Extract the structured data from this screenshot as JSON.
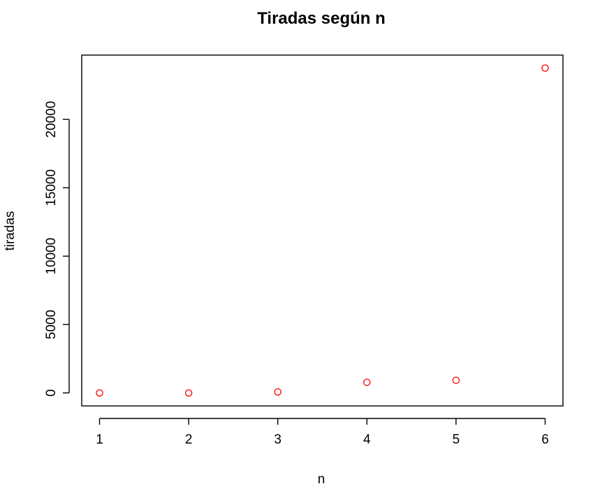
{
  "chart_data": {
    "type": "scatter",
    "title": "Tiradas según n",
    "xlabel": "n",
    "ylabel": "tiradas",
    "x": [
      1,
      2,
      3,
      4,
      5,
      6
    ],
    "y": [
      0,
      0,
      70,
      780,
      920,
      23750
    ],
    "x_ticks": [
      "1",
      "2",
      "3",
      "4",
      "5",
      "6"
    ],
    "y_ticks": [
      "0",
      "5000",
      "10000",
      "15000",
      "20000"
    ],
    "x_tick_values": [
      1,
      2,
      3,
      4,
      5,
      6
    ],
    "y_tick_values": [
      0,
      5000,
      10000,
      15000,
      20000
    ],
    "xlim": [
      0.8,
      6.2
    ],
    "ylim": [
      -950,
      24700
    ],
    "point_color": "#ff0000",
    "marker": "open-circle",
    "grid": false,
    "legend": "none"
  }
}
